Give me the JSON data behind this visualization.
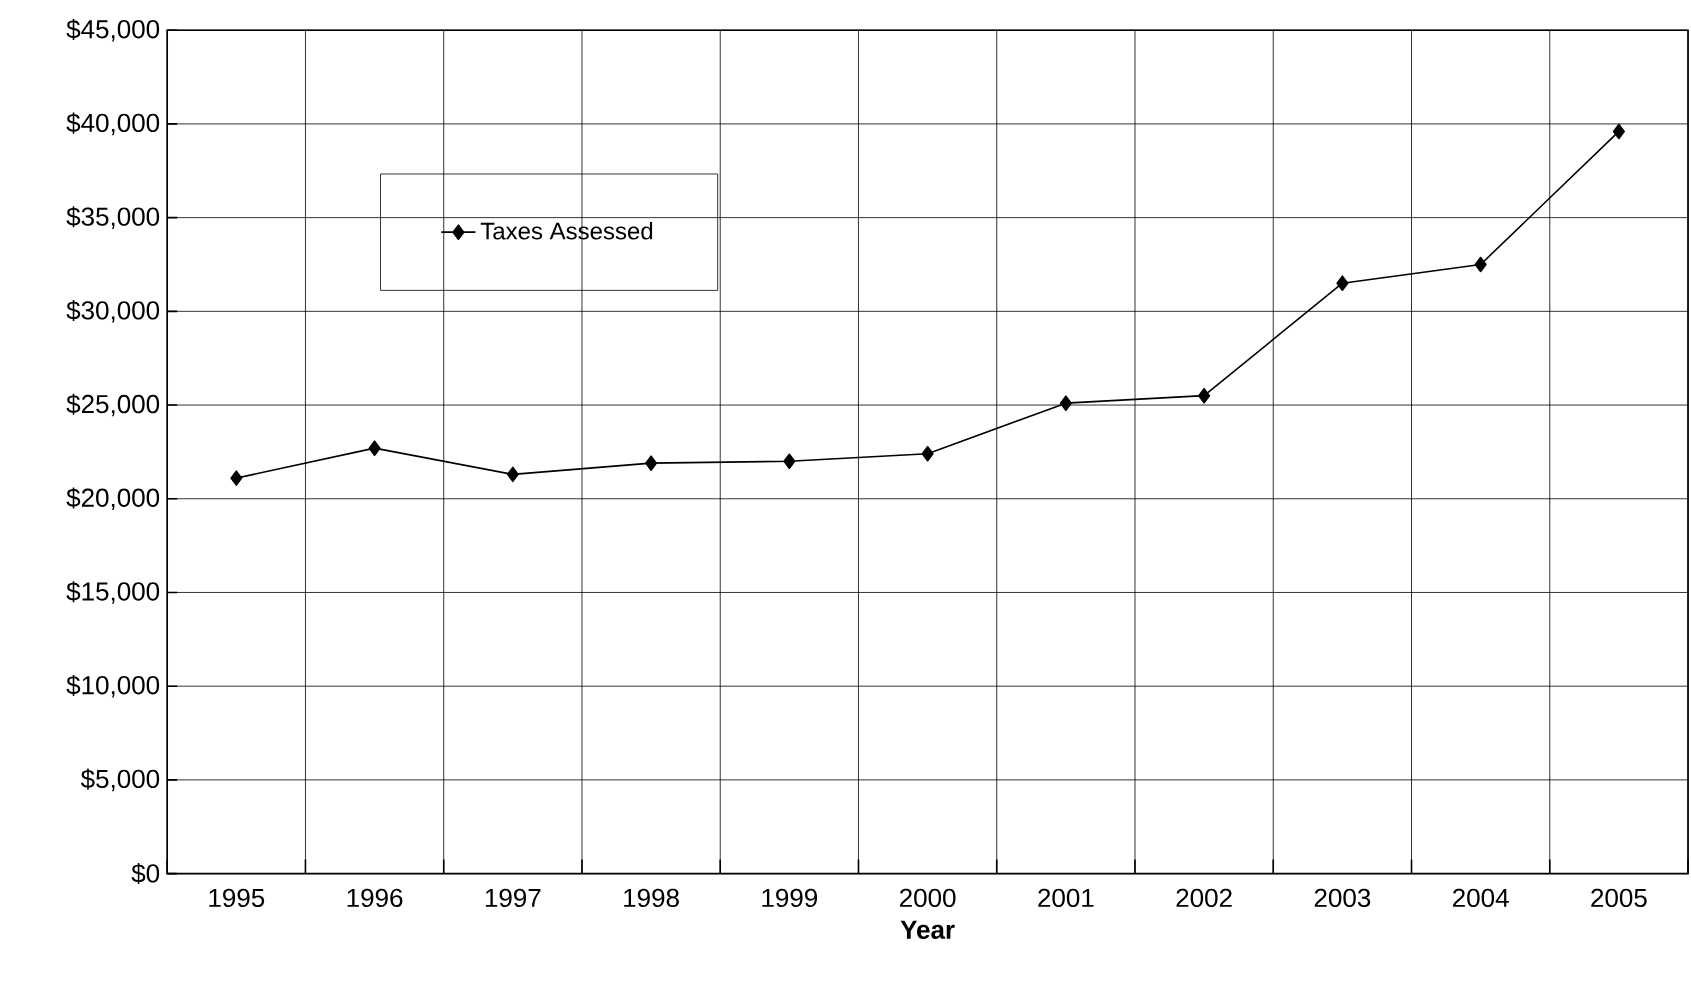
{
  "chart_data": {
    "type": "line",
    "xlabel": "Year",
    "categories": [
      "1995",
      "1996",
      "1997",
      "1998",
      "1999",
      "2000",
      "2001",
      "2002",
      "2003",
      "2004",
      "2005"
    ],
    "series": [
      {
        "name": "Taxes Assessed",
        "color": "#000000",
        "values": [
          21100,
          22700,
          21300,
          21900,
          22000,
          22400,
          25100,
          25500,
          31500,
          32500,
          39600
        ]
      }
    ],
    "ylim": [
      0,
      45000
    ],
    "yticks": [
      {
        "value": 0,
        "label": "$0"
      },
      {
        "value": 5000,
        "label": "$5,000"
      },
      {
        "value": 10000,
        "label": "$10,000"
      },
      {
        "value": 15000,
        "label": "$15,000"
      },
      {
        "value": 20000,
        "label": "$20,000"
      },
      {
        "value": 25000,
        "label": "$25,000"
      },
      {
        "value": 30000,
        "label": "$30,000"
      },
      {
        "value": 35000,
        "label": "$35,000"
      },
      {
        "value": 40000,
        "label": "$40,000"
      },
      {
        "value": 45000,
        "label": "$45,000"
      }
    ],
    "grid": true,
    "legend": "top left",
    "marker": "diamond",
    "line_style": "solid"
  }
}
